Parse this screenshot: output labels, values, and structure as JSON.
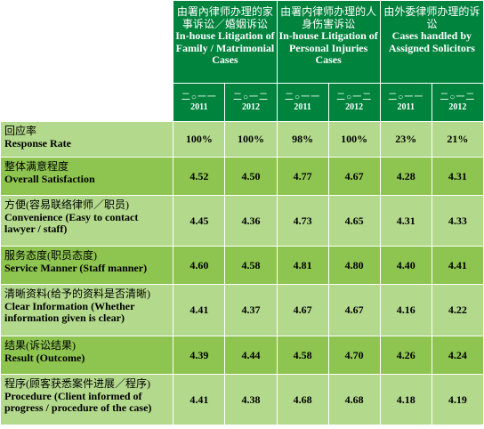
{
  "groups": [
    {
      "cn": "由署內律师办理的家事诉讼／婚姻诉讼",
      "en": "In-house Litigation of Family / Matrimonial Cases"
    },
    {
      "cn": "由署内律师办理的人身伤害诉讼",
      "en": "In-house Litigation of Personal Injuries Cases"
    },
    {
      "cn": "由外委律师办理的诉讼",
      "en": "Cases handled by Assigned Solicitors"
    }
  ],
  "years": [
    {
      "cn": "二○一一",
      "num": "2011"
    },
    {
      "cn": "二○一二",
      "num": "2012"
    },
    {
      "cn": "二○一一",
      "num": "2011"
    },
    {
      "cn": "二○一二",
      "num": "2012"
    },
    {
      "cn": "二○一一",
      "num": "2011"
    },
    {
      "cn": "二○一二",
      "num": "2012"
    }
  ],
  "rows": [
    {
      "cn": "回应率",
      "en": "Response Rate",
      "values": [
        "100%",
        "100%",
        "98%",
        "100%",
        "23%",
        "21%"
      ]
    },
    {
      "cn": "整体满意程度",
      "en": "Overall Satisfaction",
      "values": [
        "4.52",
        "4.50",
        "4.77",
        "4.67",
        "4.28",
        "4.31"
      ]
    },
    {
      "cn": "方便(容易联络律师／职员)",
      "en": "Convenience (Easy to contact lawyer / staff)",
      "values": [
        "4.45",
        "4.36",
        "4.73",
        "4.65",
        "4.31",
        "4.33"
      ]
    },
    {
      "cn": "服务态度(职员态度)",
      "en": "Service Manner (Staff manner)",
      "values": [
        "4.60",
        "4.58",
        "4.81",
        "4.80",
        "4.40",
        "4.41"
      ]
    },
    {
      "cn": "清晰资料(给予的资料是否清晰)",
      "en": "Clear Information (Whether information given is clear)",
      "values": [
        "4.41",
        "4.37",
        "4.67",
        "4.67",
        "4.16",
        "4.22"
      ]
    },
    {
      "cn": "结果(诉讼结果)",
      "en": "Result (Outcome)",
      "values": [
        "4.39",
        "4.44",
        "4.58",
        "4.70",
        "4.26",
        "4.24"
      ]
    },
    {
      "cn": "程序(顾客获悉案件进展／程序)",
      "en": "Procedure (Client informed of progress / procedure of the case)",
      "values": [
        "4.41",
        "4.38",
        "4.68",
        "4.68",
        "4.18",
        "4.19"
      ]
    }
  ]
}
